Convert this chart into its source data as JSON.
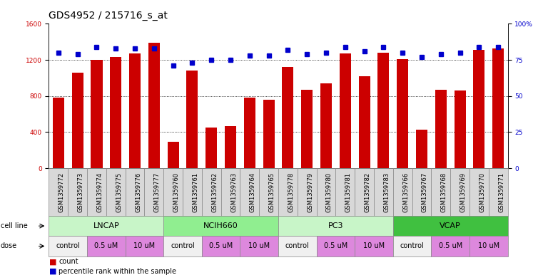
{
  "title": "GDS4952 / 215716_s_at",
  "samples": [
    "GSM1359772",
    "GSM1359773",
    "GSM1359774",
    "GSM1359775",
    "GSM1359776",
    "GSM1359777",
    "GSM1359760",
    "GSM1359761",
    "GSM1359762",
    "GSM1359763",
    "GSM1359764",
    "GSM1359765",
    "GSM1359778",
    "GSM1359779",
    "GSM1359780",
    "GSM1359781",
    "GSM1359782",
    "GSM1359783",
    "GSM1359766",
    "GSM1359767",
    "GSM1359768",
    "GSM1359769",
    "GSM1359770",
    "GSM1359771"
  ],
  "counts": [
    780,
    1060,
    1200,
    1230,
    1270,
    1390,
    290,
    1080,
    450,
    470,
    780,
    760,
    1120,
    870,
    940,
    1270,
    1020,
    1280,
    1210,
    430,
    870,
    860,
    1310,
    1330
  ],
  "percentiles": [
    80,
    79,
    84,
    83,
    83,
    83,
    71,
    73,
    75,
    75,
    78,
    78,
    82,
    79,
    80,
    84,
    81,
    84,
    80,
    77,
    79,
    80,
    84,
    84
  ],
  "cell_lines": [
    {
      "name": "LNCAP",
      "start": 0,
      "end": 6,
      "color": "#c8f5c8"
    },
    {
      "name": "NCIH660",
      "start": 6,
      "end": 12,
      "color": "#90ee90"
    },
    {
      "name": "PC3",
      "start": 12,
      "end": 18,
      "color": "#c8f5c8"
    },
    {
      "name": "VCAP",
      "start": 18,
      "end": 24,
      "color": "#40c040"
    }
  ],
  "doses": [
    {
      "label": "control",
      "start": 0,
      "end": 2,
      "color": "#f0f0f0"
    },
    {
      "label": "0.5 uM",
      "start": 2,
      "end": 4,
      "color": "#dd88dd"
    },
    {
      "label": "10 uM",
      "start": 4,
      "end": 6,
      "color": "#dd88dd"
    },
    {
      "label": "control",
      "start": 6,
      "end": 8,
      "color": "#f0f0f0"
    },
    {
      "label": "0.5 uM",
      "start": 8,
      "end": 10,
      "color": "#dd88dd"
    },
    {
      "label": "10 uM",
      "start": 10,
      "end": 12,
      "color": "#dd88dd"
    },
    {
      "label": "control",
      "start": 12,
      "end": 14,
      "color": "#f0f0f0"
    },
    {
      "label": "0.5 uM",
      "start": 14,
      "end": 16,
      "color": "#dd88dd"
    },
    {
      "label": "10 uM",
      "start": 16,
      "end": 18,
      "color": "#dd88dd"
    },
    {
      "label": "control",
      "start": 18,
      "end": 20,
      "color": "#f0f0f0"
    },
    {
      "label": "0.5 uM",
      "start": 20,
      "end": 22,
      "color": "#dd88dd"
    },
    {
      "label": "10 uM",
      "start": 22,
      "end": 24,
      "color": "#dd88dd"
    }
  ],
  "bar_color": "#cc0000",
  "dot_color": "#0000cc",
  "ylim_left": [
    0,
    1600
  ],
  "ylim_right": [
    0,
    100
  ],
  "yticks_left": [
    0,
    400,
    800,
    1200,
    1600
  ],
  "yticks_right": [
    0,
    25,
    50,
    75,
    100
  ],
  "grid_lines": [
    400,
    800,
    1200
  ],
  "title_fontsize": 10,
  "tick_fontsize": 6.5,
  "label_fontsize": 8,
  "sample_fontsize": 6,
  "dose_fontsize": 7
}
